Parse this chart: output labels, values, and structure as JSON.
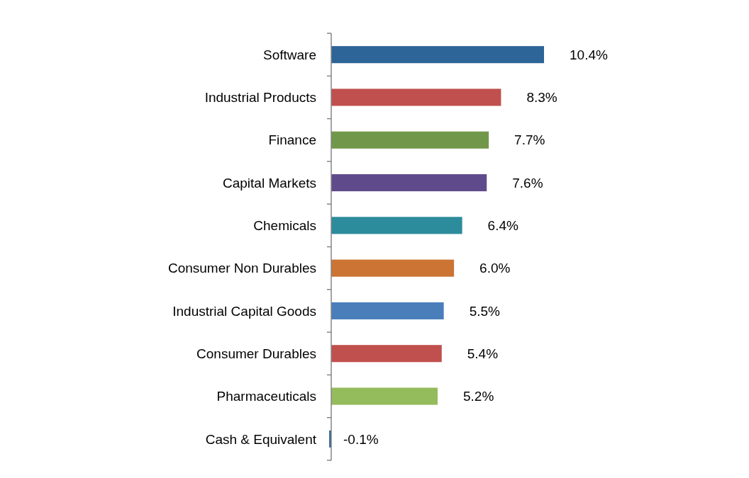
{
  "chart_data": {
    "type": "bar",
    "orientation": "horizontal",
    "data_labels": true,
    "categories": [
      "Software",
      "Industrial Products",
      "Finance",
      "Capital Markets",
      "Chemicals",
      "Consumer Non Durables",
      "Industrial Capital Goods",
      "Consumer Durables",
      "Pharmaceuticals",
      "Cash & Equivalent"
    ],
    "values": [
      10.4,
      8.3,
      7.7,
      7.6,
      6.4,
      6.0,
      5.5,
      5.4,
      5.2,
      -0.1
    ],
    "value_labels": [
      "10.4%",
      "8.3%",
      "7.7%",
      "7.6%",
      "6.4%",
      "6.0%",
      "5.5%",
      "5.4%",
      "5.2%",
      "-0.1%"
    ],
    "colors": [
      "#2e6598",
      "#c0504d",
      "#71984a",
      "#5f4b8b",
      "#2c8c9b",
      "#cb7434",
      "#4a7ebb",
      "#c0504d",
      "#94bb5c",
      "#2e6598"
    ]
  }
}
